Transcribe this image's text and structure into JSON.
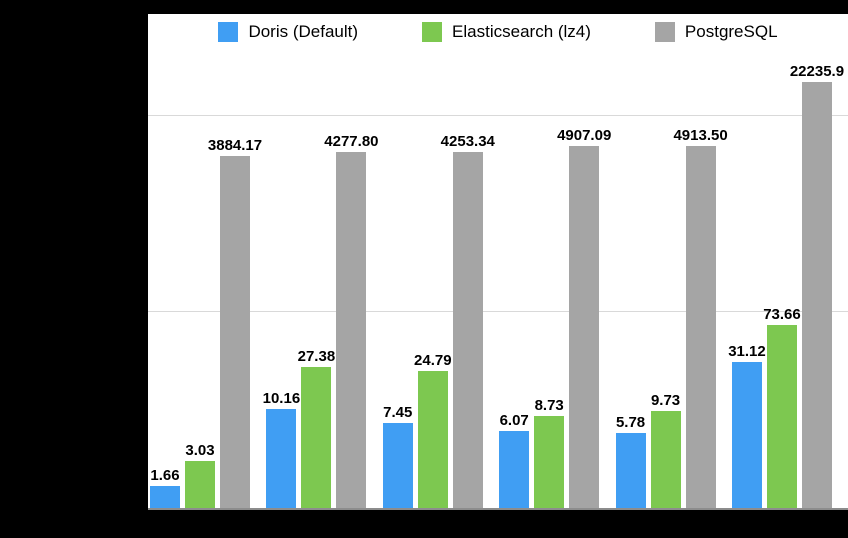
{
  "canvas": {
    "background": "#000000",
    "plot_background": "#ffffff",
    "axis_color": "#8c8c8c",
    "gridline_color": "#d9d9d9"
  },
  "chart_data": {
    "type": "bar",
    "yscale": "log",
    "ylim": [
      1,
      100000
    ],
    "gridline_values": [
      100,
      10000
    ],
    "grid": "on",
    "legend_position": "top",
    "title": "",
    "xlabel": "",
    "ylabel": "",
    "num_groups": 6,
    "series": [
      {
        "name": "Doris (Default)",
        "color": "#409ef3",
        "values": [
          1.66,
          10.16,
          7.45,
          6.07,
          5.78,
          31.12
        ],
        "labels": [
          "1.66",
          "10.16",
          "7.45",
          "6.07",
          "5.78",
          "31.12"
        ]
      },
      {
        "name": "Elasticsearch (lz4)",
        "color": "#7dc850",
        "values": [
          3.03,
          27.38,
          24.79,
          8.73,
          9.73,
          73.66
        ],
        "labels": [
          "3.03",
          "27.38",
          "24.79",
          "8.73",
          "9.73",
          "73.66"
        ]
      },
      {
        "name": "PostgreSQL",
        "color": "#a5a5a5",
        "values": [
          3884.17,
          4277.8,
          4253.34,
          4907.09,
          4913.5,
          22235.9
        ],
        "labels": [
          "3884.17",
          "4277.80",
          "4253.34",
          "4907.09",
          "4913.50",
          "22235.9"
        ]
      }
    ]
  }
}
